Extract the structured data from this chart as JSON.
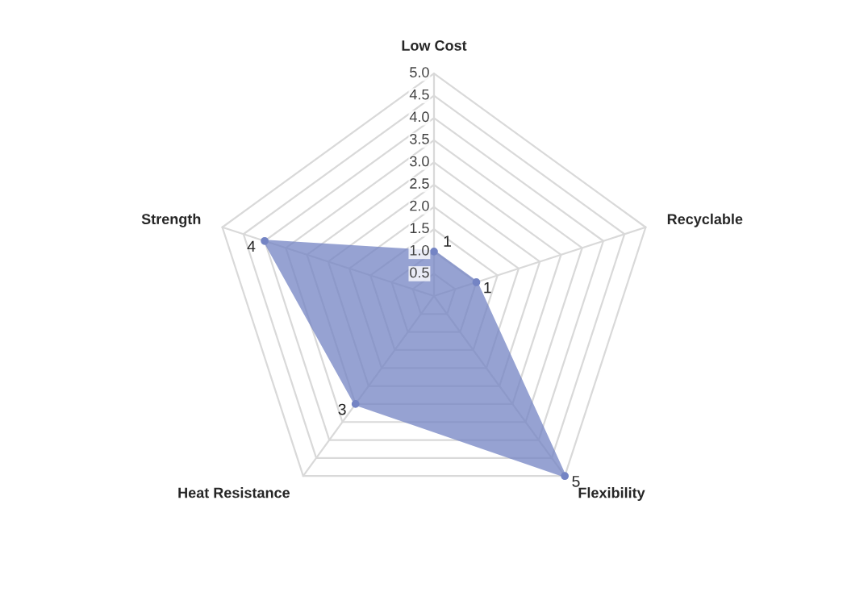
{
  "chart_data": {
    "type": "radar",
    "categories": [
      "Low Cost",
      "Recyclable",
      "Flexibility",
      "Heat Resistance",
      "Strength"
    ],
    "series": [
      {
        "color": "#7484c4",
        "values": [
          1,
          1,
          5,
          3,
          4
        ]
      }
    ],
    "ylim": [
      0,
      5
    ],
    "yticks": [
      {
        "value": 0.5,
        "label": "0.5"
      },
      {
        "value": 1,
        "label": "1.0"
      },
      {
        "value": 1.5,
        "label": "1.5"
      },
      {
        "value": 2,
        "label": "2.0"
      },
      {
        "value": 2.5,
        "label": "2.5"
      },
      {
        "value": 3,
        "label": "3.0"
      },
      {
        "value": 3.5,
        "label": "3.5"
      },
      {
        "value": 4,
        "label": "4.0"
      },
      {
        "value": 4.5,
        "label": "4.5"
      },
      {
        "value": 5,
        "label": "5.0"
      }
    ],
    "grid": true,
    "data_labels": true,
    "marker": "circle"
  }
}
